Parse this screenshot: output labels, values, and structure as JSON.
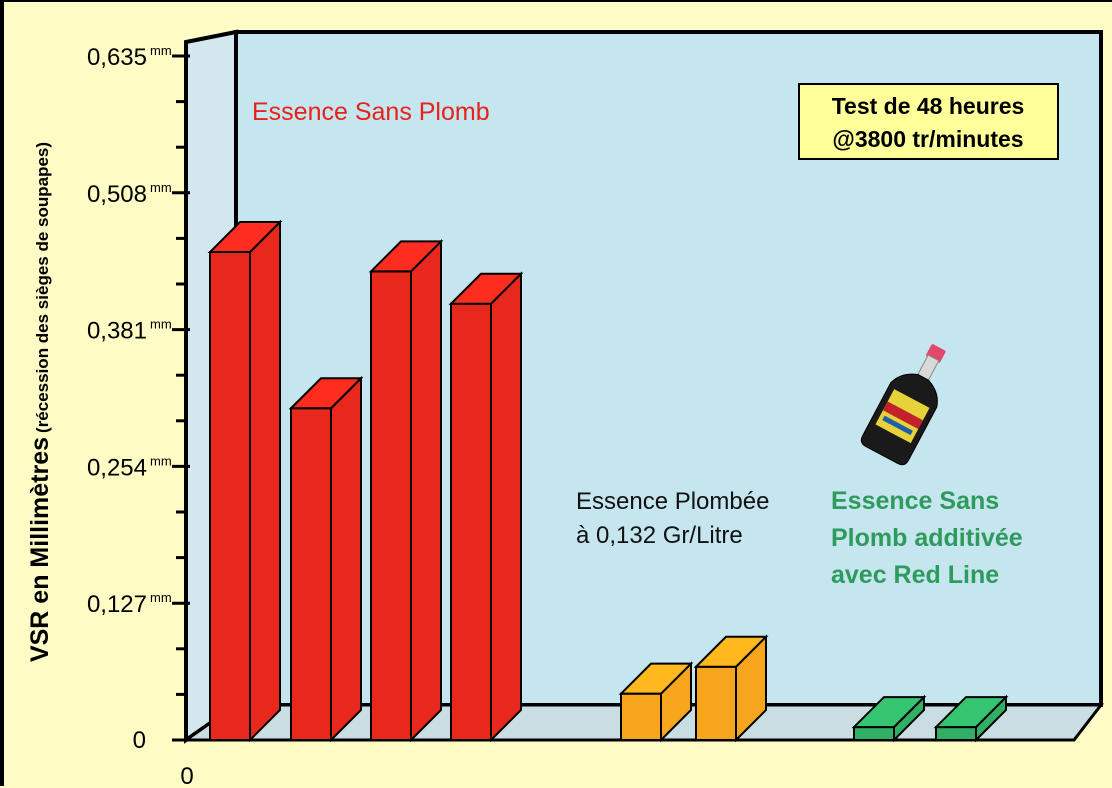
{
  "chart_data": {
    "type": "bar",
    "ylabel_main": "VSR en Millimètres",
    "ylabel_sub": "(récession des sièges de soupapes)",
    "y_unit": "mm",
    "yticks": [
      "0",
      "0,127",
      "0,254",
      "0,381",
      "0,508",
      "0,635"
    ],
    "ylim": [
      0,
      0.635
    ],
    "x_origin_label": "0",
    "grid": false,
    "legend_box": {
      "line1": "Test de 48 heures",
      "line2": "@3800 tr/minutes"
    },
    "group_labels": [
      {
        "lines": [
          "Essence Sans Plomb"
        ],
        "color": "#e8211b"
      },
      {
        "lines": [
          "Essence Plombée",
          "à 0,132 Gr/Litre"
        ],
        "color": "#111111"
      },
      {
        "lines": [
          "Essence Sans",
          "Plomb additivée",
          "avec Red Line"
        ],
        "color": "#2e9a5c"
      }
    ],
    "series": [
      {
        "group": 0,
        "color": "#e8281c",
        "values": [
          0.453,
          0.308,
          0.435,
          0.405
        ]
      },
      {
        "group": 1,
        "color": "#f7a51c",
        "values": [
          0.043,
          0.068
        ]
      },
      {
        "group": 2,
        "color": "#2fb064",
        "values": [
          0.012,
          0.012
        ]
      }
    ],
    "colors": {
      "wall": "#c5e5ef",
      "floor": "#c9dde3",
      "background": "#fefbc4",
      "box": "#ffff99"
    },
    "icon": "additive-bottle-icon"
  }
}
